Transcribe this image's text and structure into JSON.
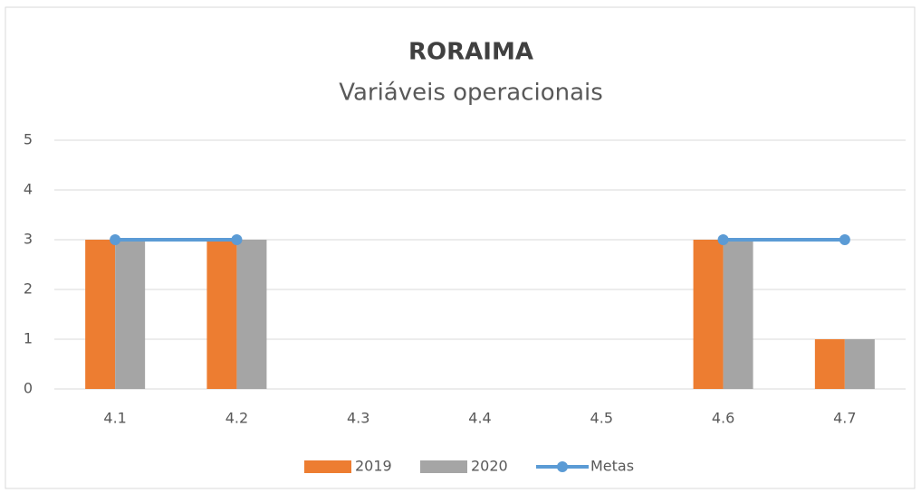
{
  "chart_data": {
    "type": "bar",
    "title": "RORAIMA",
    "subtitle": "Variáveis operacionais",
    "categories": [
      "4.1",
      "4.2",
      "4.3",
      "4.4",
      "4.5",
      "4.6",
      "4.7"
    ],
    "series": [
      {
        "name": "2019",
        "color": "#ed7d31",
        "values": [
          3,
          3,
          null,
          null,
          null,
          3,
          1
        ]
      },
      {
        "name": "2020",
        "color": "#a5a5a5",
        "values": [
          3,
          3,
          null,
          null,
          null,
          3,
          1
        ]
      },
      {
        "name": "Metas",
        "type": "line",
        "color": "#5b9bd5",
        "values": [
          3,
          3,
          null,
          null,
          null,
          3,
          3
        ]
      }
    ],
    "ylim": [
      0,
      5
    ],
    "yticks": [
      0,
      1,
      2,
      3,
      4,
      5
    ],
    "grid": true,
    "legend": "bottom"
  }
}
